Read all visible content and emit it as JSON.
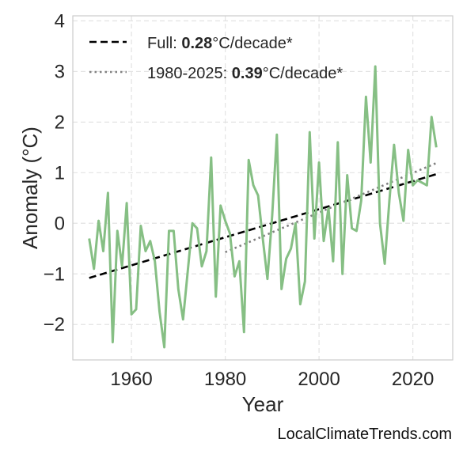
{
  "chart_data": {
    "type": "line",
    "xlabel": "Year",
    "ylabel": "Anomaly (°C)",
    "xlim": [
      1947.5,
      2028.5
    ],
    "ylim": [
      -2.7,
      4.1
    ],
    "xticks": [
      1960,
      1980,
      2000,
      2020
    ],
    "yticks": [
      -2,
      -1,
      0,
      1,
      2,
      3,
      4
    ],
    "ytick_labels": [
      "−2",
      "−1",
      "0",
      "1",
      "2",
      "3",
      "4"
    ],
    "grid": true,
    "legend_position": "top-left",
    "colors": {
      "series": "#86bf84",
      "full_trend": "#000000",
      "recent_trend": "#808080"
    },
    "series": [
      {
        "x": [
          1951,
          1952,
          1953,
          1954,
          1955,
          1956,
          1957,
          1958,
          1959,
          1960,
          1961,
          1962,
          1963,
          1964,
          1965,
          1966,
          1967,
          1968,
          1969,
          1970,
          1971,
          1972,
          1973,
          1974,
          1975,
          1976,
          1977,
          1978,
          1979,
          1980,
          1981,
          1982,
          1983,
          1984,
          1985,
          1986,
          1987,
          1988,
          1989,
          1990,
          1991,
          1992,
          1993,
          1994,
          1995,
          1996,
          1997,
          1998,
          1999,
          2000,
          2001,
          2002,
          2003,
          2004,
          2005,
          2006,
          2007,
          2008,
          2009,
          2010,
          2011,
          2012,
          2013,
          2014,
          2015,
          2016,
          2017,
          2018,
          2019,
          2020,
          2021,
          2022,
          2023,
          2024,
          2025
        ],
        "values": [
          -0.3,
          -0.9,
          0.05,
          -0.55,
          0.6,
          -2.35,
          -0.15,
          -0.85,
          0.4,
          -1.8,
          -1.7,
          -0.05,
          -0.55,
          -0.35,
          -0.75,
          -1.75,
          -2.45,
          -0.15,
          -0.15,
          -1.3,
          -1.9,
          -0.95,
          0.0,
          -0.1,
          -0.85,
          -0.55,
          1.3,
          -1.45,
          0.35,
          0.05,
          -0.2,
          -1.05,
          -0.75,
          -2.15,
          1.25,
          0.75,
          0.55,
          -0.3,
          -1.1,
          0.15,
          1.75,
          -1.3,
          -0.7,
          -0.5,
          0.0,
          -1.6,
          -1.15,
          1.8,
          -0.3,
          1.2,
          -0.35,
          0.3,
          -0.75,
          1.6,
          -1.0,
          0.95,
          -0.1,
          -0.15,
          0.45,
          2.5,
          1.2,
          3.1,
          0.0,
          -0.8,
          0.45,
          1.55,
          0.6,
          0.05,
          1.45,
          0.75,
          0.85,
          0.8,
          0.75,
          2.1,
          1.5
        ]
      }
    ],
    "trend_full": {
      "x": [
        1951,
        2025
      ],
      "y": [
        -1.08,
        0.97
      ]
    },
    "trend_recent": {
      "x": [
        1980,
        2025
      ],
      "y": [
        -0.57,
        1.19
      ]
    },
    "legend": {
      "full": {
        "prefix": "Full: ",
        "value": "0.28",
        "suffix": "°C/decade*"
      },
      "recent": {
        "prefix": "1980-2025: ",
        "value": "0.39",
        "suffix": "°C/decade*"
      }
    }
  },
  "footer": {
    "source": "LocalClimateTrends.com"
  }
}
